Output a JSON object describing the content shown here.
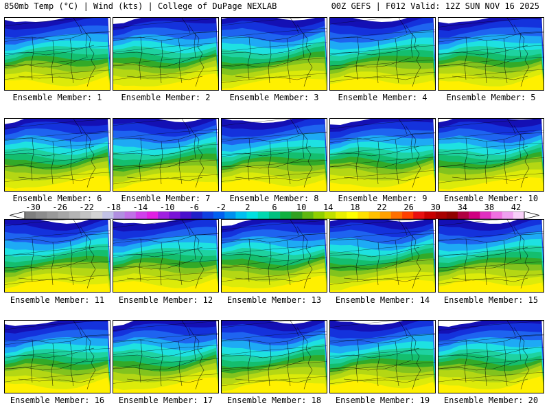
{
  "header": {
    "left": "850mb Temp (°C) | Wind (kts) | College of DuPage NEXLAB",
    "right": "00Z GEFS | F012 Valid: 12Z SUN NOV 16 2025"
  },
  "caption_prefix": "Ensemble Member: ",
  "members": [
    "1",
    "2",
    "3",
    "4",
    "5",
    "6",
    "7",
    "8",
    "9",
    "10",
    "11",
    "12",
    "13",
    "14",
    "15",
    "16",
    "17",
    "18",
    "19",
    "20"
  ],
  "colorbar": {
    "labels": [
      "-30",
      "-26",
      "-22",
      "-18",
      "-14",
      "-10",
      "-6",
      "-2",
      "2",
      "6",
      "10",
      "14",
      "18",
      "22",
      "26",
      "30",
      "34",
      "38",
      "42"
    ],
    "colors": [
      "#7f7f7f",
      "#8c8c8c",
      "#999999",
      "#a6a6a6",
      "#b4b4b4",
      "#c4c4c4",
      "#d4d4d4",
      "#c2c2e6",
      "#b18fe0",
      "#c070e6",
      "#d040ea",
      "#e020e2",
      "#a020e0",
      "#7a14d6",
      "#4a10cc",
      "#2020c8",
      "#1040e0",
      "#0060f0",
      "#0090f0",
      "#00c0f0",
      "#00e0e0",
      "#00d8b0",
      "#00c080",
      "#10b040",
      "#30a020",
      "#60b810",
      "#90d000",
      "#c0e000",
      "#e8f000",
      "#ffff00",
      "#ffe000",
      "#ffc000",
      "#ffa000",
      "#ff7000",
      "#ff4000",
      "#e81010",
      "#c80000",
      "#a80000",
      "#900000",
      "#b00040",
      "#d00080",
      "#e030c0",
      "#f070e0",
      "#f0a0f0",
      "#f8d0f8"
    ]
  },
  "map_colors": {
    "deep_blue": "#1410b4",
    "blue": "#1432dc",
    "mid_blue": "#1e64f0",
    "sky": "#1eaaf5",
    "cyan": "#1ee1e1",
    "teal": "#1ed2a0",
    "green_teal": "#14be6e",
    "green": "#32aa28",
    "yellow_green": "#82c31e",
    "lime": "#b4d714",
    "yellow_lime": "#dceb0a",
    "yellow": "#fff000",
    "lines": "#000000"
  }
}
